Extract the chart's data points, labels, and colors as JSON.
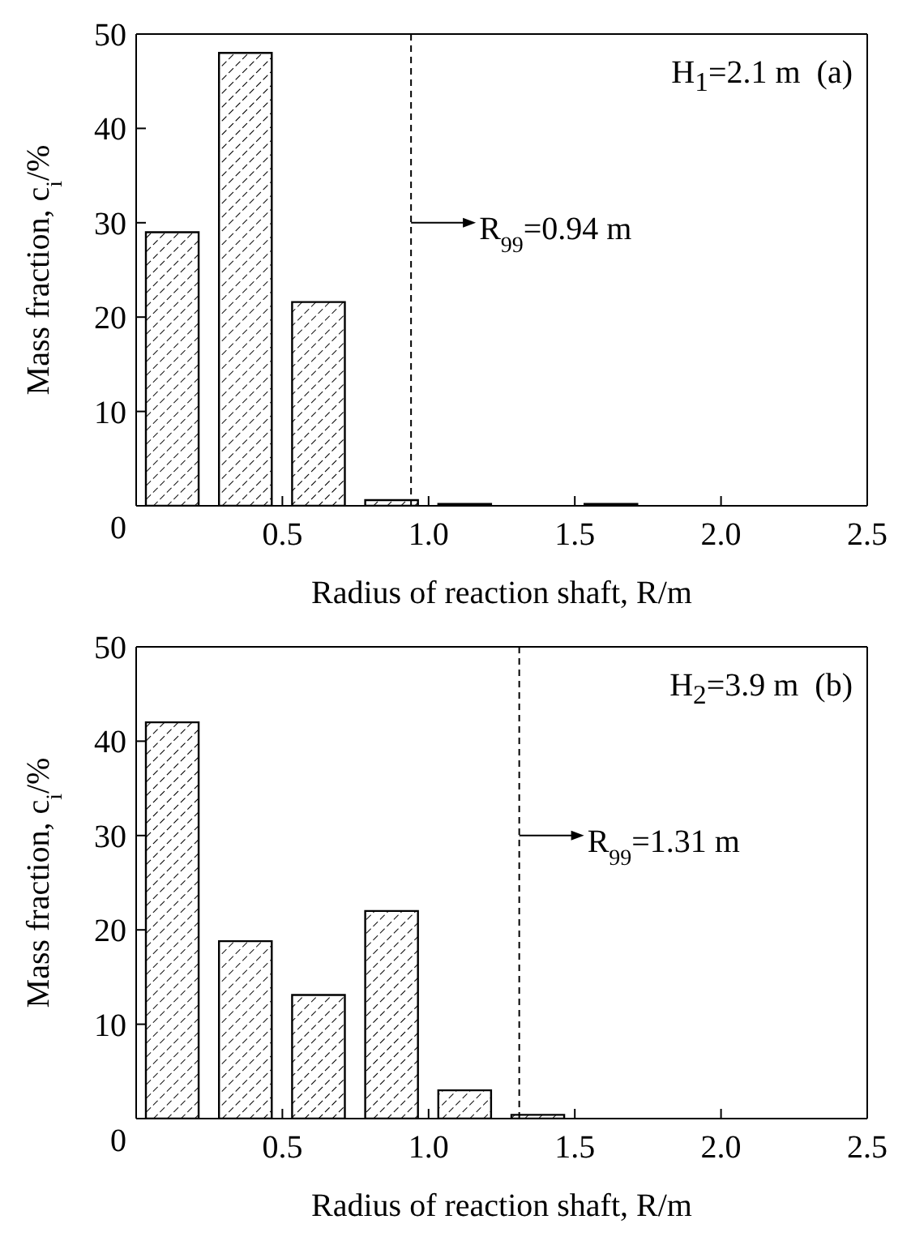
{
  "chart_data": [
    {
      "type": "bar",
      "x": [
        0.125,
        0.375,
        0.625,
        0.875,
        1.125,
        1.625
      ],
      "values": [
        29,
        48,
        21.6,
        0.6,
        0.2,
        0.2
      ],
      "color": "#000000",
      "xlabel": "Radius of reaction shaft, R/m",
      "ylabel": "Mass fraction, c$_{i}$/%",
      "xlim": [
        0,
        2.5
      ],
      "xticks": [
        {
          "value": 0.5,
          "label": "0.5"
        },
        {
          "value": 1,
          "label": "1.0"
        },
        {
          "value": 1.5,
          "label": "1.5"
        },
        {
          "value": 2,
          "label": "2.0"
        },
        {
          "value": 2.5,
          "label": "2.5"
        }
      ],
      "ylim": [
        0,
        50
      ],
      "yticks": [
        0,
        10,
        20,
        30,
        40,
        50
      ],
      "ref_lines": [
        {
          "axis": "x",
          "value": 0.94,
          "label": "R$_{99}$=0.94 m",
          "line_style": "dashed"
        }
      ],
      "annotations": [
        "H$_{1}$=2.1 m  (a)"
      ]
    },
    {
      "type": "bar",
      "x": [
        0.125,
        0.375,
        0.625,
        0.875,
        1.125,
        1.375
      ],
      "values": [
        42,
        18.8,
        13.1,
        22,
        3,
        0.4
      ],
      "color": "#000000",
      "xlabel": "Radius of reaction shaft, R/m",
      "ylabel": "Mass fraction, c$_{i}$/%",
      "xlim": [
        0,
        2.5
      ],
      "xticks": [
        {
          "value": 0.5,
          "label": "0.5"
        },
        {
          "value": 1,
          "label": "1.0"
        },
        {
          "value": 1.5,
          "label": "1.5"
        },
        {
          "value": 2,
          "label": "2.0"
        },
        {
          "value": 2.5,
          "label": "2.5"
        }
      ],
      "ylim": [
        0,
        50
      ],
      "yticks": [
        0,
        10,
        20,
        30,
        40,
        50
      ],
      "ref_lines": [
        {
          "axis": "x",
          "value": 1.31,
          "label": "R$_{99}$=1.31 m",
          "line_style": "dashed"
        }
      ],
      "annotations": [
        "H$_{2}$=3.9 m  (b)"
      ]
    }
  ]
}
